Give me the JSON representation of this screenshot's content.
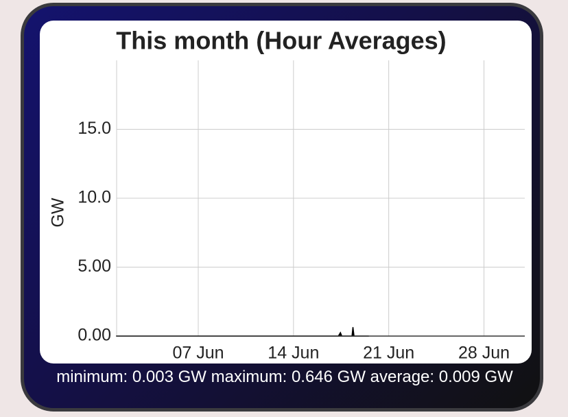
{
  "chart_data": {
    "type": "area",
    "title": "This month (Hour Averages)",
    "y_label": "GW",
    "x": [
      1,
      17.3,
      17.45,
      17.55,
      18.3,
      18.37,
      18.45,
      19.5
    ],
    "values": [
      0.003,
      0.003,
      0.25,
      0.003,
      0.003,
      0.646,
      0.003,
      0.003
    ],
    "color": "#000000",
    "xlim": [
      1,
      31
    ],
    "xticks": [
      {
        "value": 7,
        "label": "07 Jun"
      },
      {
        "value": 14,
        "label": "14 Jun"
      },
      {
        "value": 21,
        "label": "21 Jun"
      },
      {
        "value": 28,
        "label": "28 Jun"
      }
    ],
    "ylim": [
      0,
      20
    ],
    "yticks": [
      {
        "value": 0,
        "label": "0.00"
      },
      {
        "value": 5,
        "label": "5.00"
      },
      {
        "value": 10,
        "label": "10.0"
      },
      {
        "value": 15,
        "label": "15.0"
      }
    ],
    "grid": true,
    "caption": "minimum: 0.003 GW maximum: 0.646 GW average: 0.009 GW"
  }
}
